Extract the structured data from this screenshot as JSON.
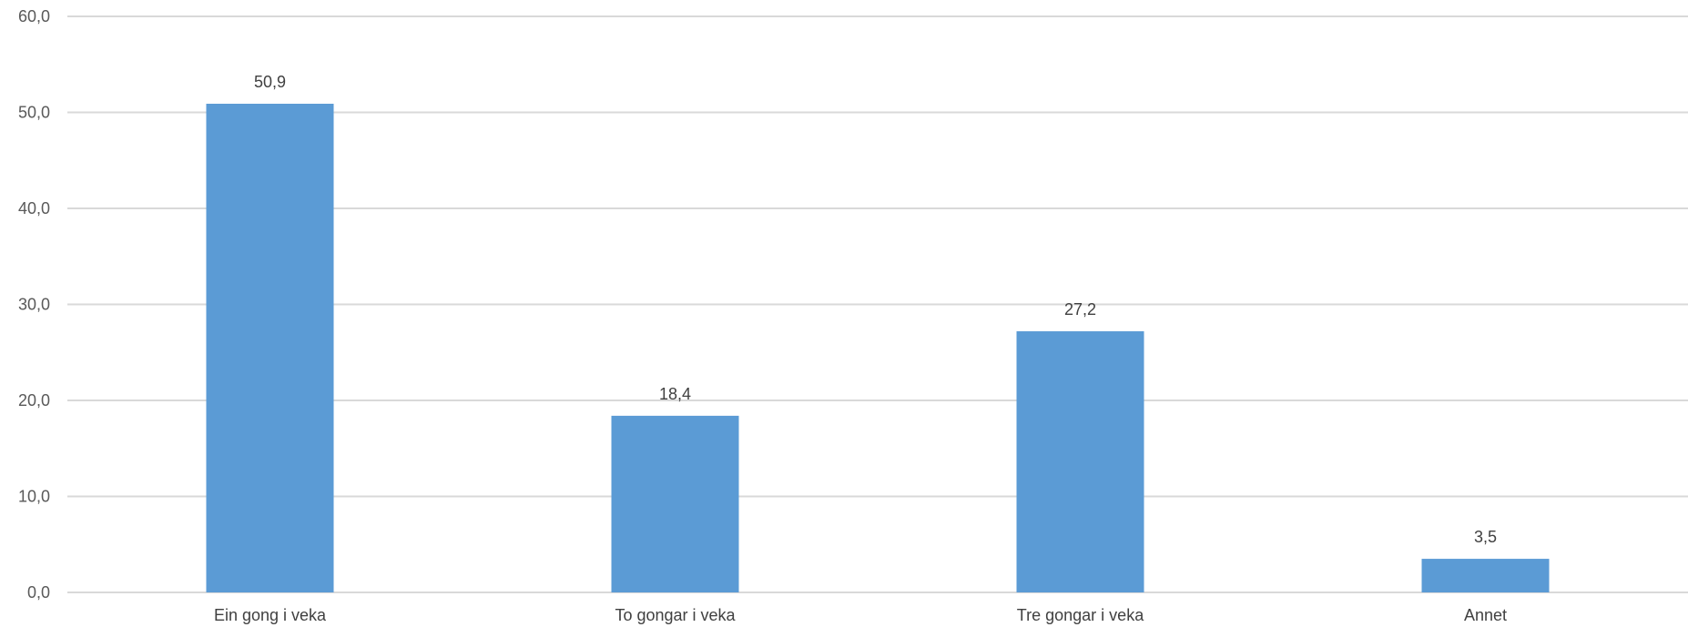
{
  "chart_data": {
    "type": "bar",
    "categories": [
      "Ein gong i veka",
      "To gongar i veka",
      "Tre gongar i veka",
      "Annet"
    ],
    "values": [
      50.9,
      18.4,
      27.2,
      3.5
    ],
    "data_labels": [
      "50,9",
      "18,4",
      "27,2",
      "3,5"
    ],
    "title": "",
    "xlabel": "",
    "ylabel": "",
    "ylim": [
      0,
      60
    ],
    "yticks": [
      0,
      10,
      20,
      30,
      40,
      50,
      60
    ],
    "ytick_labels": [
      "0,0",
      "10,0",
      "20,0",
      "30,0",
      "40,0",
      "50,0",
      "60,0"
    ],
    "grid": true,
    "legend": "none",
    "bar_color": "#5b9bd5"
  }
}
